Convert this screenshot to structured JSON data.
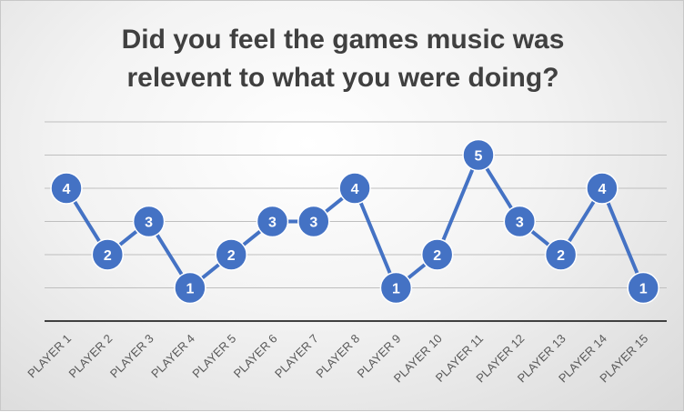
{
  "chart_data": {
    "type": "line",
    "title_line1": "Did you feel the games music was",
    "title_line2": "relevent to what you were doing?",
    "categories": [
      "PLAYER 1",
      "PLAYER 2",
      "PLAYER 3",
      "PLAYER 4",
      "PLAYER 5",
      "PLAYER 6",
      "PLAYER 7",
      "PLAYER 8",
      "PLAYER 9",
      "PLAYER 10",
      "PLAYER 11",
      "PLAYER 12",
      "PLAYER 13",
      "PLAYER 14",
      "PLAYER 15"
    ],
    "values": [
      4,
      2,
      3,
      1,
      2,
      3,
      3,
      4,
      1,
      2,
      5,
      3,
      2,
      4,
      1
    ],
    "ylim": [
      0,
      6
    ],
    "grid": true,
    "data_labels": true,
    "colors": {
      "line": "#4472c4",
      "marker_stroke": "#ffffff",
      "label_text": "#ffffff",
      "gridline": "#bfbfbf",
      "axis": "#404040",
      "tick_text": "#595959"
    }
  }
}
